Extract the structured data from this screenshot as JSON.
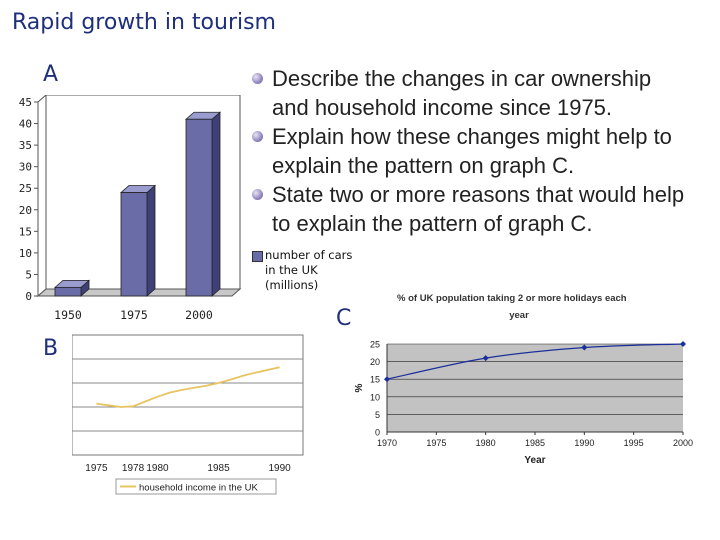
{
  "title": "Rapid growth in tourism",
  "bullets": [
    "Describe the changes in car ownership",
    "and household income since 1975.",
    "Explain how these changes might help to",
    "explain the pattern on graph C.",
    "State two or more reasons that would help",
    "to explain the pattern of graph C."
  ],
  "chart_data": [
    {
      "id": "A",
      "label": "A",
      "type": "bar",
      "categories": [
        "1950",
        "1975",
        "2000"
      ],
      "values": [
        2,
        24,
        41
      ],
      "ylim": [
        0,
        45
      ],
      "yticks": [
        "0",
        "5",
        "10",
        "15",
        "20",
        "25",
        "30",
        "35",
        "40",
        "45"
      ],
      "legend": [
        "number of cars",
        "in the UK",
        "(millions)"
      ],
      "bar_color": "#6a6ca8"
    },
    {
      "id": "B",
      "label": "B",
      "type": "line",
      "x": [
        1975,
        1976,
        1977,
        1978,
        1979,
        1980,
        1981,
        1982,
        1983,
        1984,
        1985,
        1986,
        1987,
        1988,
        1989,
        1990
      ],
      "y": [
        15.0,
        14.5,
        14.0,
        14.2,
        15.6,
        17.0,
        18.2,
        19.0,
        19.6,
        20.2,
        21.0,
        22.0,
        23.1,
        24.0,
        24.8,
        25.6
      ],
      "xticks": [
        "1975",
        "1978",
        "1980",
        "1985",
        "1990"
      ],
      "legend": "household income in the UK",
      "line_color": "#e8c460"
    },
    {
      "id": "C",
      "label": "C",
      "type": "line",
      "title": "% of UK population taking 2 or more holidays each year",
      "title_lines": [
        "% of UK population taking 2 or more holidays each",
        "year"
      ],
      "x": [
        1970,
        1980,
        1990,
        2000
      ],
      "y": [
        15,
        21,
        24,
        25
      ],
      "xlim": [
        1970,
        2000
      ],
      "ylim": [
        0,
        25
      ],
      "xticks": [
        "1970",
        "1975",
        "1980",
        "1985",
        "1990",
        "1995",
        "2000"
      ],
      "yticks": [
        "0",
        "5",
        "10",
        "15",
        "20",
        "25"
      ],
      "xlabel": "Year",
      "ylabel": "%",
      "line_color": "#1a2f9a"
    }
  ]
}
